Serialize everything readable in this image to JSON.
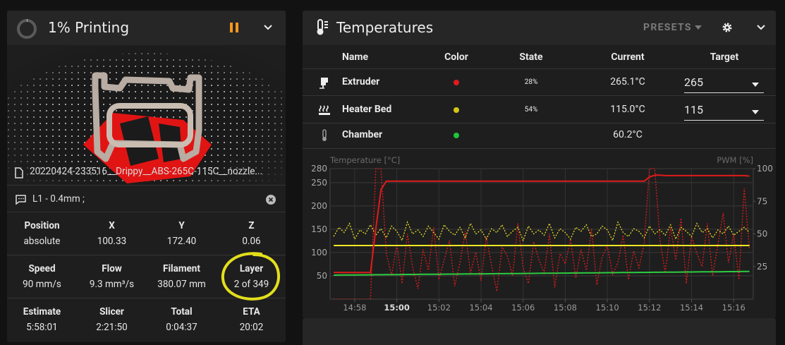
{
  "status": {
    "title": "1% Printing",
    "filename": "20220424-233516__Drippy__ABS-265C-115C__nozzle...",
    "gcode": "L1 - 0.4mm ;",
    "stats": [
      [
        {
          "label": "Position",
          "value": "absolute"
        },
        {
          "label": "X",
          "value": "100.33"
        },
        {
          "label": "Y",
          "value": "172.40"
        },
        {
          "label": "Z",
          "value": "0.06"
        }
      ],
      [
        {
          "label": "Speed",
          "value": "90 mm/s"
        },
        {
          "label": "Flow",
          "value": "9.3 mm³/s"
        },
        {
          "label": "Filament",
          "value": "380.07 mm"
        },
        {
          "label": "Layer",
          "value": "2 of 349"
        }
      ],
      [
        {
          "label": "Estimate",
          "value": "5:58:01"
        },
        {
          "label": "Slicer",
          "value": "2:21:50"
        },
        {
          "label": "Total",
          "value": "0:04:37"
        },
        {
          "label": "ETA",
          "value": "20:02"
        }
      ]
    ]
  },
  "temperatures": {
    "title": "Temperatures",
    "presets": "PRESETS",
    "columns": [
      "Name",
      "Color",
      "State",
      "Current",
      "Target"
    ],
    "rows": [
      {
        "name": "Extruder",
        "color": "#e01b1b",
        "state": "28%",
        "current": "265.1°C",
        "target": "265"
      },
      {
        "name": "Heater Bed",
        "color": "#d4c514",
        "state": "54%",
        "current": "115.0°C",
        "target": "115"
      },
      {
        "name": "Chamber",
        "color": "#1fc43a",
        "current": "60.2°C"
      }
    ]
  },
  "chart_data": {
    "type": "line",
    "y_label": "Temperature [°C]",
    "y2_label": "PWM [%]",
    "grid": true,
    "xlim": [
      896.83,
      916.93
    ],
    "xticks": [
      {
        "value": 898,
        "label": "14:58"
      },
      {
        "value": 900,
        "label": "15:00"
      },
      {
        "value": 902,
        "label": "15:02"
      },
      {
        "value": 904,
        "label": "15:04"
      },
      {
        "value": 906,
        "label": "15:06"
      },
      {
        "value": 908,
        "label": "15:08"
      },
      {
        "value": 910,
        "label": "15:10"
      },
      {
        "value": 912,
        "label": "15:12"
      },
      {
        "value": 914,
        "label": "15:14"
      },
      {
        "value": 916,
        "label": "15:16"
      }
    ],
    "ylim": [
      0,
      280
    ],
    "yticks": [
      50,
      100,
      150,
      200,
      250,
      280
    ],
    "y2lim": [
      0,
      100
    ],
    "y2ticks": [
      25,
      50,
      75,
      100
    ],
    "x": [
      897,
      897.25,
      897.5,
      897.75,
      898,
      898.25,
      898.5,
      898.75,
      899,
      899.25,
      899.5,
      899.75,
      900,
      900.25,
      900.5,
      900.75,
      901,
      901.25,
      901.5,
      901.75,
      902,
      902.25,
      902.5,
      902.75,
      903,
      903.25,
      903.5,
      903.75,
      904,
      904.25,
      904.5,
      904.75,
      905,
      905.25,
      905.5,
      905.75,
      906,
      906.25,
      906.5,
      906.75,
      907,
      907.25,
      907.5,
      907.75,
      908,
      908.25,
      908.5,
      908.75,
      909,
      909.25,
      909.5,
      909.75,
      910,
      910.25,
      910.5,
      910.75,
      911,
      911.25,
      911.5,
      911.75,
      912,
      912.25,
      912.5,
      912.75,
      913,
      913.25,
      913.5,
      913.75,
      914,
      914.25,
      914.5,
      914.75,
      915,
      915.25,
      915.5,
      915.75,
      916,
      916.25,
      916.5,
      916.75
    ],
    "series": [
      {
        "color": "#e01b1b",
        "style": "dotted",
        "axis": "y2",
        "values": [
          0,
          0,
          0,
          0,
          0,
          0,
          0,
          0,
          100,
          100,
          35,
          18,
          42,
          12,
          50,
          25,
          8,
          38,
          22,
          55,
          15,
          30,
          45,
          10,
          28,
          52,
          20,
          36,
          14,
          48,
          26,
          6,
          40,
          33,
          18,
          58,
          24,
          12,
          44,
          30,
          20,
          50,
          9,
          35,
          27,
          46,
          16,
          38,
          22,
          54,
          11,
          32,
          41,
          19,
          28,
          49,
          15,
          37,
          24,
          43,
          100,
          100,
          45,
          20,
          55,
          30,
          62,
          12,
          48,
          35,
          25,
          58,
          18,
          42,
          66,
          28,
          50,
          15,
          85,
          38
        ]
      },
      {
        "color": "#e6dc2a",
        "style": "dotted",
        "axis": "y2",
        "values": [
          48,
          55,
          51,
          58,
          46,
          53,
          50,
          57,
          49,
          54,
          47,
          56,
          52,
          45,
          59,
          50,
          53,
          48,
          56,
          51,
          46,
          57,
          52,
          49,
          55,
          47,
          58,
          50,
          53,
          46,
          54,
          51,
          57,
          48,
          52,
          55,
          45,
          56,
          50,
          53,
          49,
          58,
          47,
          54,
          51,
          46,
          55,
          52,
          57,
          48,
          50,
          56,
          53,
          45,
          59,
          51,
          48,
          54,
          52,
          47,
          56,
          50,
          53,
          49,
          57,
          46,
          55,
          52,
          48,
          58,
          51,
          54,
          47,
          53,
          50,
          56,
          49,
          52,
          55,
          51
        ]
      },
      {
        "color": "#f2e824",
        "style": "solid",
        "axis": "y",
        "values": [
          115,
          115,
          115,
          115,
          115,
          115,
          115,
          115,
          115,
          115,
          115,
          115,
          115,
          115,
          115,
          115,
          115,
          115,
          115,
          115,
          115,
          115,
          115,
          115,
          115,
          115,
          115,
          115,
          115,
          115,
          115,
          115,
          115,
          115,
          115,
          115,
          115,
          115,
          115,
          115,
          115,
          115,
          115,
          115,
          115,
          115,
          115,
          115,
          115,
          115,
          115,
          115,
          115,
          115,
          115,
          115,
          115,
          115,
          115,
          115,
          115,
          115,
          115,
          115,
          115,
          115,
          115,
          115,
          115,
          115,
          115,
          115,
          115,
          115,
          115,
          115,
          115,
          115,
          115,
          115
        ]
      },
      {
        "color": "#2ecc40",
        "style": "solid",
        "axis": "y",
        "values": [
          51.5,
          51.6,
          51.7,
          51.8,
          51.9,
          52.0,
          52.1,
          52.2,
          52.3,
          52.4,
          52.5,
          52.6,
          52.7,
          52.8,
          52.9,
          53.0,
          53.1,
          53.2,
          53.3,
          53.4,
          53.5,
          53.6,
          53.7,
          53.8,
          53.9,
          54.0,
          54.1,
          54.2,
          54.3,
          54.4,
          54.5,
          54.6,
          54.7,
          54.8,
          54.9,
          55.0,
          55.1,
          55.2,
          55.3,
          55.4,
          55.5,
          55.6,
          55.7,
          55.8,
          55.9,
          56.0,
          56.1,
          56.2,
          56.3,
          56.4,
          56.5,
          56.6,
          56.7,
          56.8,
          56.9,
          57.0,
          57.1,
          57.2,
          57.3,
          57.4,
          57.5,
          57.6,
          57.7,
          57.8,
          57.9,
          58.0,
          58.1,
          58.2,
          58.3,
          58.4,
          58.5,
          58.6,
          58.7,
          58.8,
          58.9,
          59.0,
          59.1,
          59.2,
          59.3,
          59.4
        ]
      },
      {
        "color": "#e01b1b",
        "style": "solid",
        "axis": "y",
        "values": [
          57,
          57,
          57,
          57,
          57,
          57,
          57,
          57,
          150,
          235,
          253,
          253,
          253,
          253,
          253,
          253,
          253,
          253,
          253,
          253,
          253,
          253,
          253,
          253,
          253,
          253,
          253,
          253,
          253,
          253,
          253,
          253,
          253,
          253,
          253,
          253,
          253,
          253,
          253,
          253,
          253,
          253,
          253,
          253,
          253,
          253,
          253,
          253,
          253,
          253,
          253,
          253,
          253,
          253,
          253,
          253,
          253,
          253,
          253,
          253,
          262,
          266,
          266,
          265,
          265,
          265,
          265,
          265,
          265,
          265,
          265,
          265,
          265,
          265,
          265,
          265,
          265,
          265,
          265,
          264
        ]
      }
    ]
  }
}
